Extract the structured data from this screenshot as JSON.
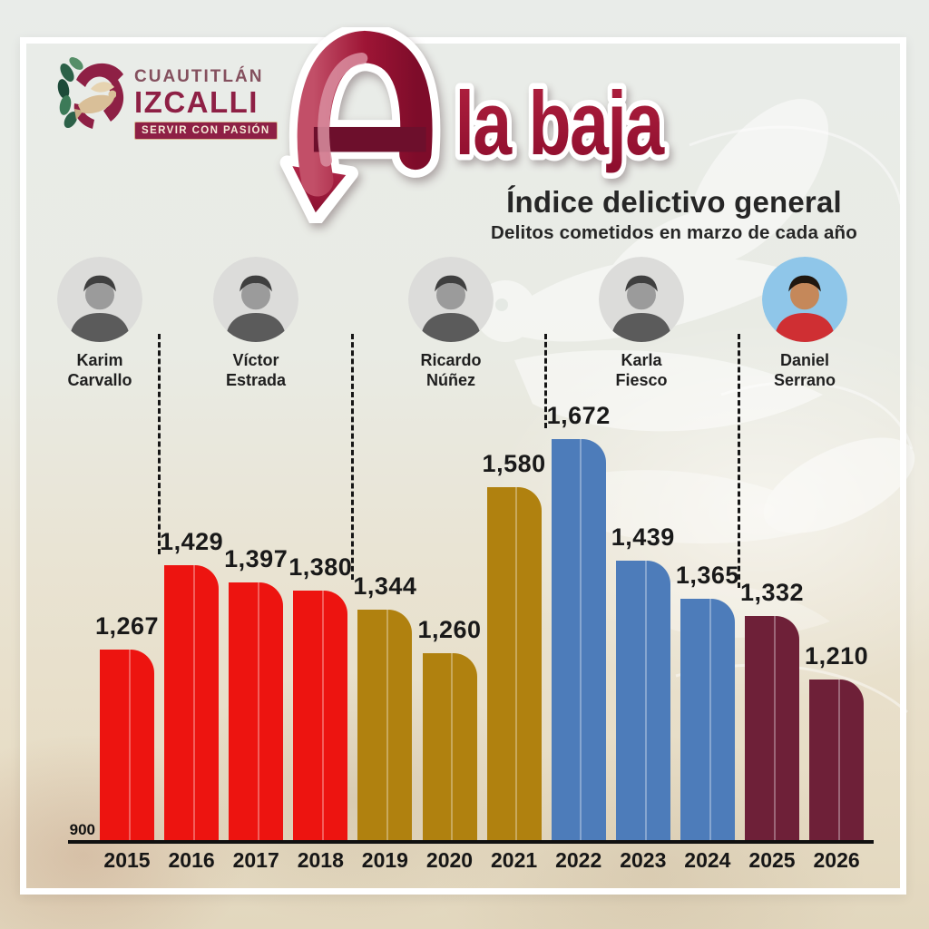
{
  "brand": {
    "city_line1": "CUAUTITLÁN",
    "city_line2": "IZCALLI",
    "tagline": "SERVIR CON PASIÓN",
    "brand_color": "#8e2045"
  },
  "title": {
    "full": "A la baja",
    "prefix_letter": "A",
    "main_rest": "la baja",
    "subtitle": "Índice delictivo general",
    "subtitle2": "Delitos cometidos en marzo de cada año",
    "title_color": "#9a1330"
  },
  "officials": [
    {
      "first": "Karim",
      "last": "Carvallo",
      "photo_style": "grayscale"
    },
    {
      "first": "Víctor",
      "last": "Estrada",
      "photo_style": "grayscale"
    },
    {
      "first": "Ricardo",
      "last": "Núñez",
      "photo_style": "grayscale"
    },
    {
      "first": "Karla",
      "last": "Fiesco",
      "photo_style": "grayscale"
    },
    {
      "first": "Daniel",
      "last": "Serrano",
      "photo_style": "color"
    }
  ],
  "chart_data": {
    "type": "bar",
    "categories": [
      2015,
      2016,
      2017,
      2018,
      2019,
      2020,
      2021,
      2022,
      2023,
      2024,
      2025,
      2026
    ],
    "values": [
      1267,
      1429,
      1397,
      1380,
      1344,
      1260,
      1580,
      1672,
      1439,
      1365,
      1332,
      1210
    ],
    "bar_color_keys": [
      "red",
      "red",
      "red",
      "red",
      "gold",
      "gold",
      "gold",
      "blue",
      "blue",
      "blue",
      "maroon",
      "maroon"
    ],
    "palette": {
      "red": "#ed1410",
      "gold": "#b0810f",
      "blue": "#4d7cba",
      "maroon": "#6e2038"
    },
    "baseline": 900,
    "baseline_label": "900",
    "ylim": [
      900,
      1700
    ],
    "term_separators_after": [
      2015,
      2018,
      2021,
      2024
    ],
    "grid": false,
    "value_label_format": "thousands-comma",
    "title": "Índice delictivo general",
    "xlabel": "",
    "ylabel": ""
  }
}
